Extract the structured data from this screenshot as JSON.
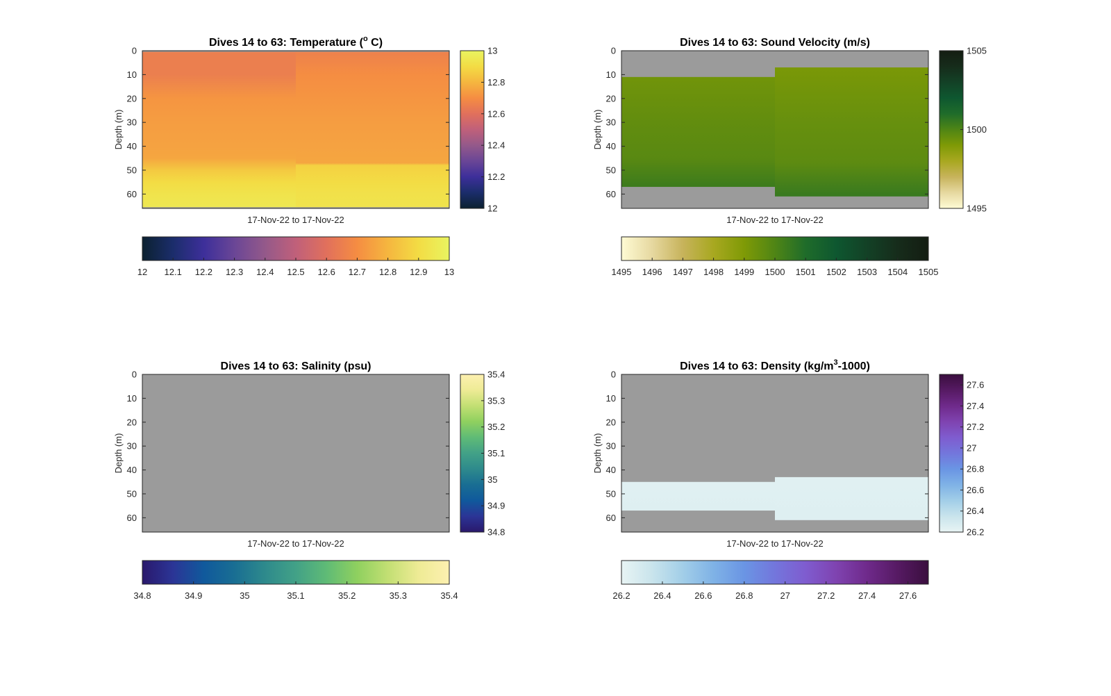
{
  "chart_data": [
    {
      "type": "heatmap",
      "title": "Dives 14 to 63: Temperature (",
      "title_sup": "o",
      "title_end": " C)",
      "xlabel": "17-Nov-22 to 17-Nov-22",
      "ylabel": "Depth (m)",
      "ylim": [
        0,
        66
      ],
      "yticks": [
        "0",
        "10",
        "20",
        "30",
        "40",
        "50",
        "60"
      ],
      "nan_color": "#9b9b9b",
      "columns": [
        {
          "depth_range": [
            0.5,
            65.5
          ],
          "value_top": 12.65,
          "value_bottom": 12.95,
          "gradient": [
            [
              0,
              12.65
            ],
            [
              10,
              12.65
            ],
            [
              20,
              12.72
            ],
            [
              30,
              12.74
            ],
            [
              40,
              12.75
            ],
            [
              45,
              12.76
            ],
            [
              50,
              12.85
            ],
            [
              55,
              12.9
            ],
            [
              60,
              12.93
            ],
            [
              66,
              12.95
            ]
          ]
        },
        {
          "depth_range": [
            0.5,
            65.5
          ],
          "value_top": 12.66,
          "value_bottom": 12.93,
          "gradient": [
            [
              0,
              12.66
            ],
            [
              10,
              12.7
            ],
            [
              20,
              12.72
            ],
            [
              30,
              12.74
            ],
            [
              40,
              12.75
            ],
            [
              47,
              12.76
            ],
            [
              48,
              12.87
            ],
            [
              55,
              12.9
            ],
            [
              60,
              12.92
            ],
            [
              66,
              12.93
            ]
          ]
        }
      ],
      "vertical_colorbar": {
        "min": 12,
        "max": 13,
        "ticks": [
          "12",
          "12.2",
          "12.4",
          "12.6",
          "12.8",
          "13"
        ]
      },
      "horizontal_colorbar": {
        "min": 12,
        "max": 13,
        "ticks": [
          "12",
          "12.1",
          "12.2",
          "12.3",
          "12.4",
          "12.5",
          "12.6",
          "12.7",
          "12.8",
          "12.9",
          "13"
        ]
      },
      "colormap": [
        "#0b2130",
        "#1b2d6b",
        "#3d2f9a",
        "#6a4696",
        "#94598a",
        "#c0607a",
        "#e1705c",
        "#f58d42",
        "#f5b63f",
        "#f3dc44",
        "#e9f460"
      ]
    },
    {
      "type": "heatmap",
      "title": "Dives 14 to 63: Sound Velocity (m/s)",
      "xlabel": "17-Nov-22 to 17-Nov-22",
      "ylabel": "Depth (m)",
      "ylim": [
        0,
        66
      ],
      "yticks": [
        "0",
        "10",
        "20",
        "30",
        "40",
        "50",
        "60"
      ],
      "nan_color": "#9b9b9b",
      "columns": [
        {
          "depth_range": [
            11,
            57
          ],
          "gradient": [
            [
              11,
              1499.3
            ],
            [
              30,
              1499.6
            ],
            [
              45,
              1499.8
            ],
            [
              57,
              1500.4
            ]
          ]
        },
        {
          "depth_range": [
            7,
            61
          ],
          "gradient": [
            [
              7,
              1499.1
            ],
            [
              30,
              1499.5
            ],
            [
              47,
              1499.7
            ],
            [
              61,
              1500.5
            ]
          ]
        }
      ],
      "vertical_colorbar": {
        "min": 1495,
        "max": 1505,
        "ticks": [
          "1495",
          "1500",
          "1505"
        ]
      },
      "horizontal_colorbar": {
        "min": 1495,
        "max": 1505,
        "ticks": [
          "1495",
          "1496",
          "1497",
          "1498",
          "1499",
          "1500",
          "1501",
          "1502",
          "1503",
          "1504",
          "1505"
        ]
      },
      "colormap": [
        "#fefbd4",
        "#e6d8a0",
        "#c7b35b",
        "#a8a820",
        "#7f9a06",
        "#4f8515",
        "#1f6c2a",
        "#0e5730",
        "#134126",
        "#162c1b",
        "#141d12"
      ]
    },
    {
      "type": "heatmap",
      "title": "Dives 14 to 63: Salinity (psu)",
      "xlabel": "17-Nov-22 to 17-Nov-22",
      "ylabel": "Depth (m)",
      "ylim": [
        0,
        66
      ],
      "yticks": [
        "0",
        "10",
        "20",
        "30",
        "40",
        "50",
        "60"
      ],
      "nan_color": "#9b9b9b",
      "columns": [],
      "vertical_colorbar": {
        "min": 34.8,
        "max": 35.4,
        "ticks": [
          "34.8",
          "34.9",
          "35",
          "35.1",
          "35.2",
          "35.3",
          "35.4"
        ]
      },
      "horizontal_colorbar": {
        "min": 34.8,
        "max": 35.4,
        "ticks": [
          "34.8",
          "34.9",
          "35",
          "35.1",
          "35.2",
          "35.3",
          "35.4"
        ]
      },
      "colormap": [
        "#2a186c",
        "#2b3596",
        "#10599c",
        "#196e93",
        "#2e8a8c",
        "#42a187",
        "#5fbb76",
        "#8fd05f",
        "#c2df73",
        "#eeeb95",
        "#fdf0b0"
      ]
    },
    {
      "type": "heatmap",
      "title": "Dives 14 to 63: Density (kg/m",
      "title_sup": "3",
      "title_end": "-1000)",
      "xlabel": "17-Nov-22 to 17-Nov-22",
      "ylabel": "Depth (m)",
      "ylim": [
        0,
        66
      ],
      "yticks": [
        "0",
        "10",
        "20",
        "30",
        "40",
        "50",
        "60"
      ],
      "nan_color": "#9b9b9b",
      "columns": [
        {
          "depth_range": [
            45,
            57
          ],
          "gradient": [
            [
              45,
              26.24
            ],
            [
              57,
              26.25
            ]
          ]
        },
        {
          "depth_range": [
            43,
            61
          ],
          "gradient": [
            [
              43,
              26.24
            ],
            [
              61,
              26.25
            ]
          ]
        }
      ],
      "vertical_colorbar": {
        "min": 26.2,
        "max": 27.7,
        "ticks": [
          "26.2",
          "26.4",
          "26.6",
          "26.8",
          "27",
          "27.2",
          "27.4",
          "27.6"
        ]
      },
      "horizontal_colorbar": {
        "min": 26.2,
        "max": 27.7,
        "ticks": [
          "26.2",
          "26.4",
          "26.6",
          "26.8",
          "27",
          "27.2",
          "27.4",
          "27.6"
        ]
      },
      "colormap": [
        "#e8f4f4",
        "#c9e4ec",
        "#a2cee8",
        "#7fb2e6",
        "#6a95e4",
        "#7376dc",
        "#7f5ccf",
        "#7f43b0",
        "#6f2a8b",
        "#561a63",
        "#3a0e3e"
      ]
    }
  ]
}
